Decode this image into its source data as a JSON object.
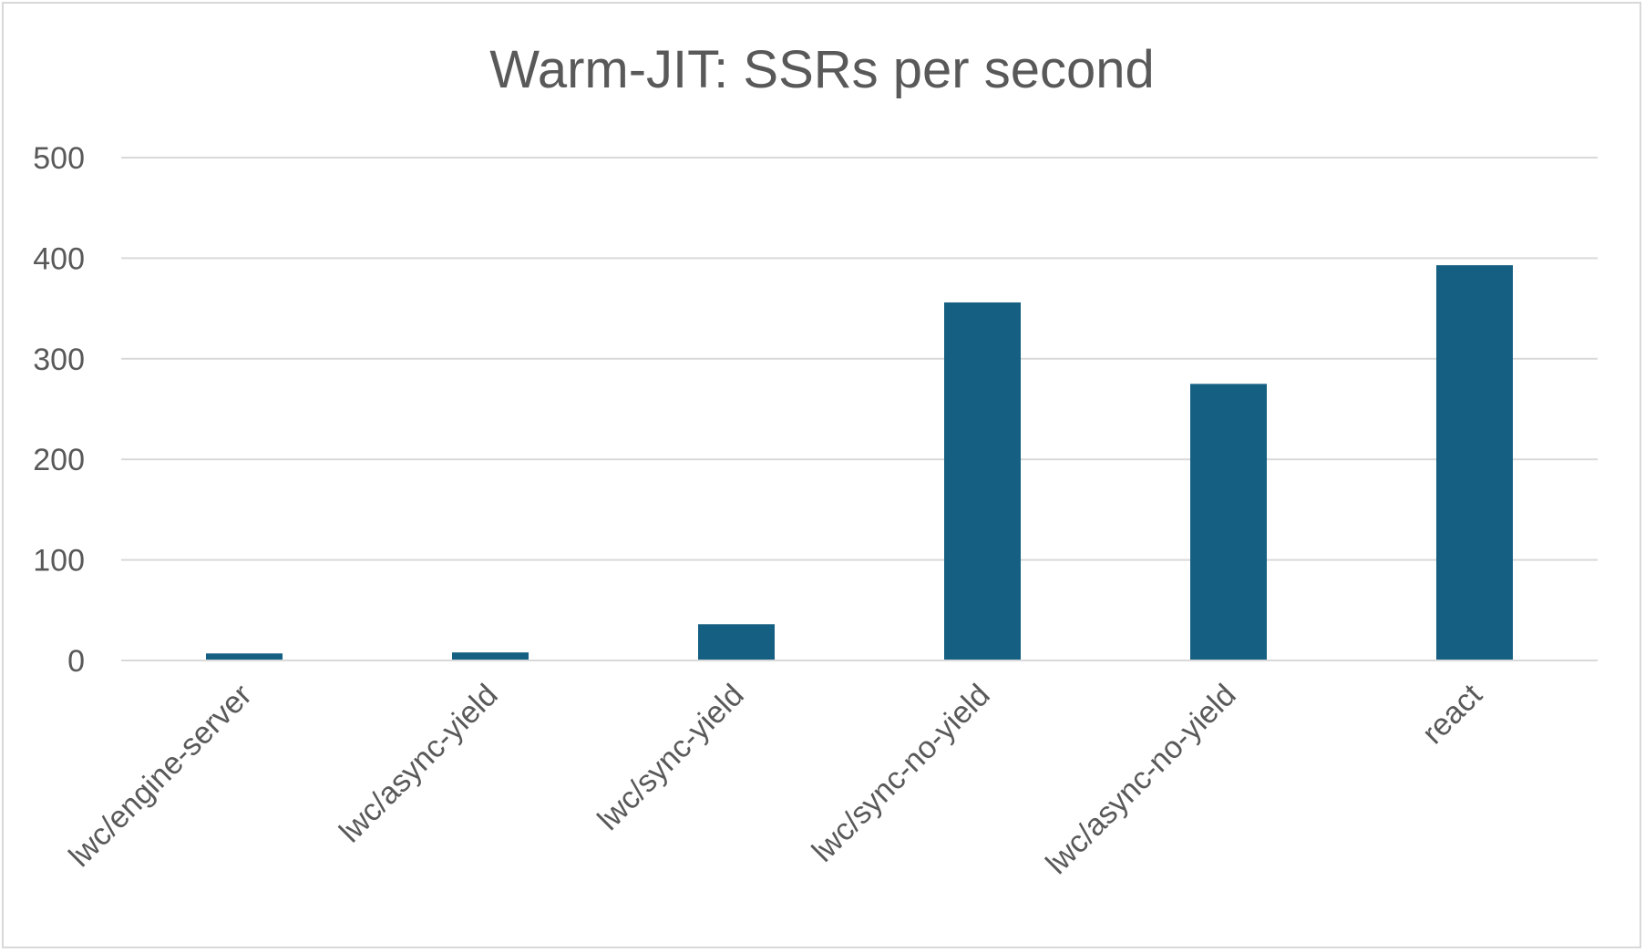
{
  "chart_data": {
    "type": "bar",
    "title": "Warm-JIT: SSRs per second",
    "xlabel": "",
    "ylabel": "",
    "categories": [
      "lwc/engine-server",
      "lwc/async-yield",
      "lwc/sync-yield",
      "lwc/sync-no-yield",
      "lwc/async-no-yield",
      "react"
    ],
    "values": [
      7,
      8,
      36,
      356,
      275,
      393
    ],
    "ylim": [
      0,
      500
    ],
    "yticks": [
      0,
      100,
      200,
      300,
      400,
      500
    ],
    "grid": true,
    "legend": "none",
    "bar_color": "#155f82"
  }
}
